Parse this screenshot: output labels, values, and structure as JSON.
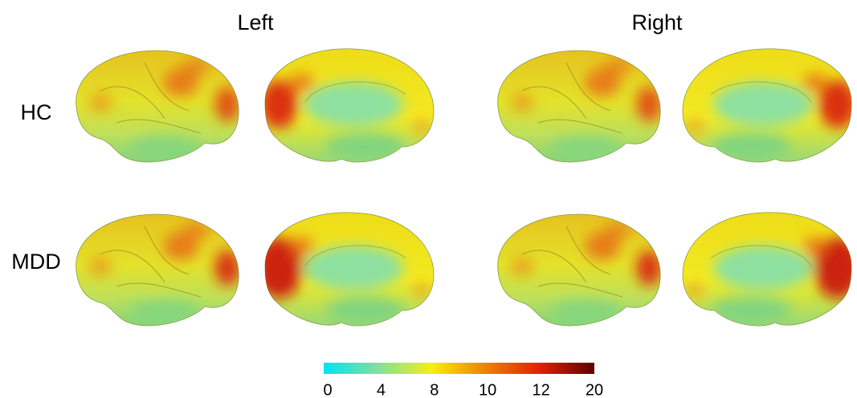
{
  "columns": [
    "Left",
    "Right"
  ],
  "rows": [
    "HC",
    "MDD"
  ],
  "colorbar": {
    "ticks": [
      0,
      4,
      8,
      10,
      12,
      20
    ],
    "colors": [
      "#00e5f0",
      "#7fe0a0",
      "#f5ef10",
      "#f08000",
      "#e02000",
      "#600000"
    ]
  }
}
